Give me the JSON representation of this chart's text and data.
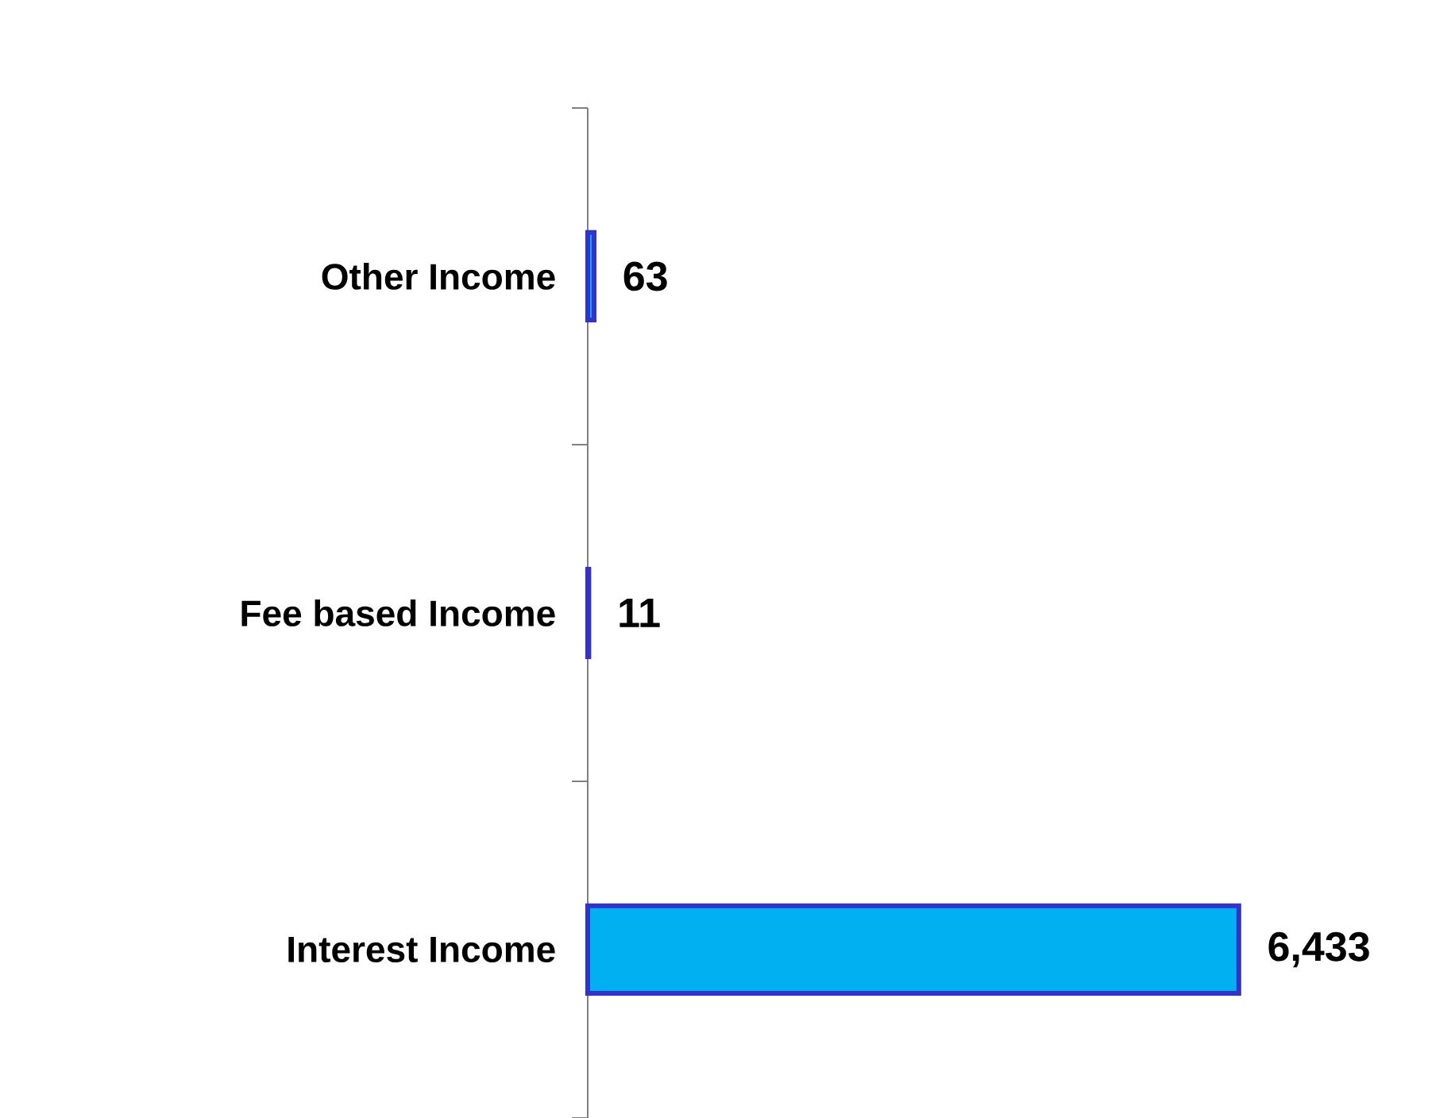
{
  "chart_data": {
    "type": "bar",
    "orientation": "horizontal",
    "categories": [
      "Other Income",
      "Fee based Income",
      "Interest Income"
    ],
    "values": [
      63,
      11,
      6433
    ],
    "value_labels": [
      "63",
      "11",
      "6,433"
    ],
    "color": "#00b0f0"
  }
}
